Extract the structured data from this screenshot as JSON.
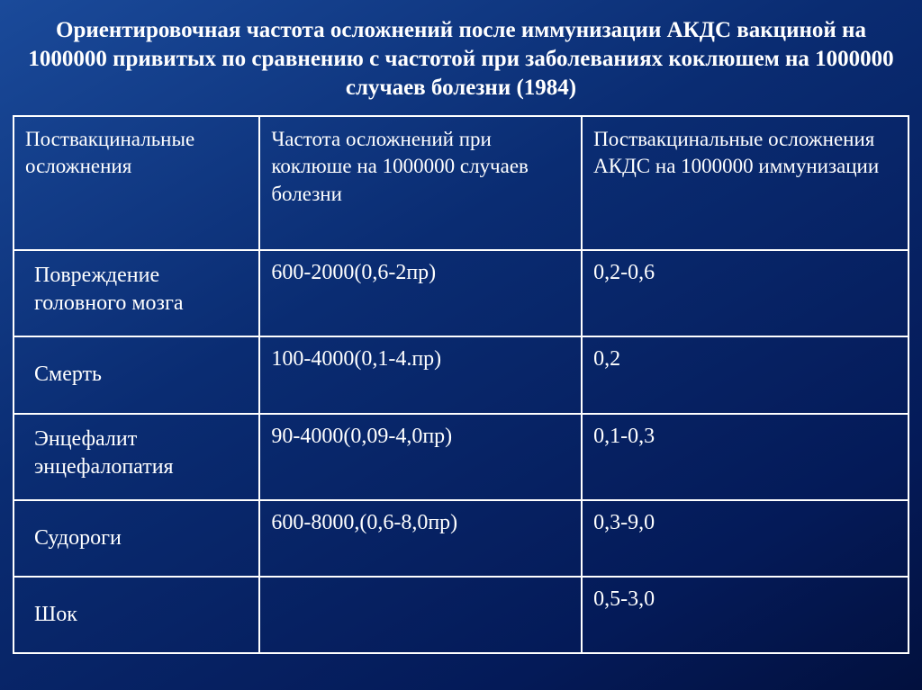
{
  "slide": {
    "title": "Ориентировочная частота осложнений после иммунизации АКДС вакциной на 1000000 привитых по сравнению с частотой при заболеваниях коклюшем на 1000000 случаев болезни (1984)",
    "background_gradient": [
      "#1a4a9a",
      "#0a2c72",
      "#041a58",
      "#02103e"
    ],
    "border_color": "#ffffff",
    "text_color": "#ffffff",
    "title_fontsize": 25,
    "header_fontsize": 23,
    "cell_fontsize": 24
  },
  "table": {
    "columns": [
      "Поствакцинальные осложнения",
      "Частота осложнений при коклюше на 1000000 случаев болезни",
      "Поствакцинальные осложнения АКДС на 1000000 иммунизации"
    ],
    "rows": [
      {
        "label": "Повреждение головного  мозга",
        "disease": "600-2000(0,6-2пр)",
        "vaccine": "0,2-0,6"
      },
      {
        "label": "Смерть",
        "disease": "100-4000(0,1-4.пр)",
        "vaccine": "0,2"
      },
      {
        "label": "Энцефалит энцефалопатия",
        "disease": "90-4000(0,09-4,0пр)",
        "vaccine": "0,1-0,3"
      },
      {
        "label": "Судороги",
        "disease": "600-8000,(0,6-8,0пр)",
        "vaccine": "0,3-9,0"
      },
      {
        "label": "Шок",
        "disease": "",
        "vaccine": "0,5-3,0"
      }
    ]
  }
}
